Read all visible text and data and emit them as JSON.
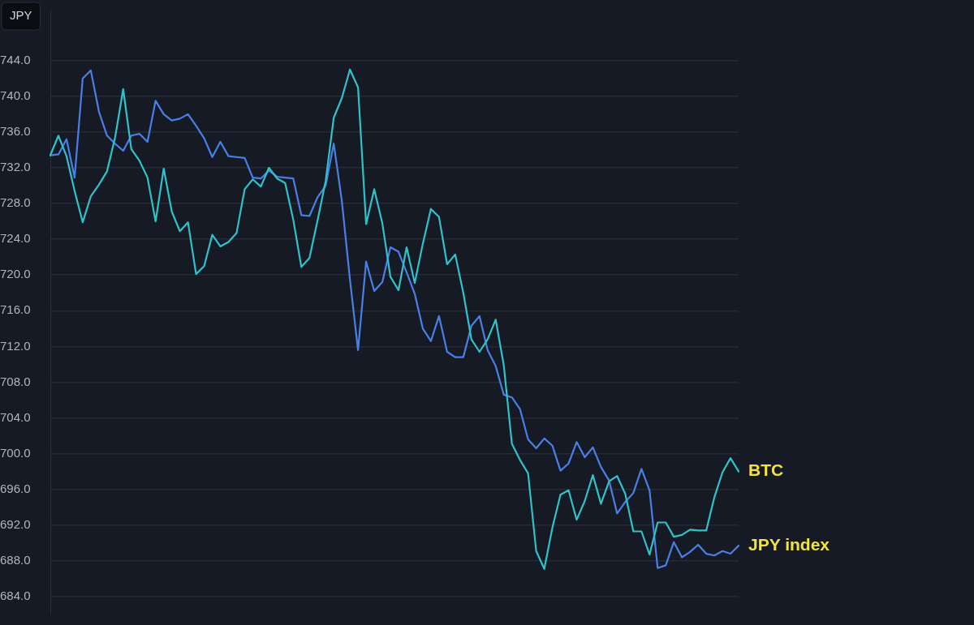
{
  "chart_data": {
    "type": "line",
    "ylabel": "JPY",
    "categories": [
      null,
      null,
      null,
      null,
      null,
      null,
      null,
      null,
      null,
      null,
      null,
      null,
      null,
      null,
      null,
      null,
      null,
      null,
      null,
      null,
      null,
      null,
      null,
      null,
      null,
      null,
      null,
      null,
      null,
      null,
      null,
      null,
      null,
      null,
      null,
      null,
      null,
      null,
      null,
      null,
      null,
      null,
      null,
      null,
      null,
      null,
      null,
      null,
      null,
      null,
      null,
      null,
      null,
      null,
      null,
      null,
      null,
      null,
      null,
      null,
      null,
      null,
      null,
      null,
      null,
      null,
      null,
      null,
      null,
      null,
      null,
      null,
      null,
      null,
      null,
      null,
      null,
      null,
      null,
      null,
      null,
      null,
      null,
      null,
      null,
      null
    ],
    "ylim": [
      682,
      749.6
    ],
    "yticks": [
      {
        "value": 684,
        "label": "684.0"
      },
      {
        "value": 688,
        "label": "688.0"
      },
      {
        "value": 692,
        "label": "692.0"
      },
      {
        "value": 696,
        "label": "696.0"
      },
      {
        "value": 700,
        "label": "700.0"
      },
      {
        "value": 704,
        "label": "704.0"
      },
      {
        "value": 708,
        "label": "708.0"
      },
      {
        "value": 712,
        "label": "712.0"
      },
      {
        "value": 716,
        "label": "716.0"
      },
      {
        "value": 720,
        "label": "720.0"
      },
      {
        "value": 724,
        "label": "724.0"
      },
      {
        "value": 728,
        "label": "728.0"
      },
      {
        "value": 732,
        "label": "732.0"
      },
      {
        "value": 736,
        "label": "736.0"
      },
      {
        "value": 740,
        "label": "740.0"
      },
      {
        "value": 744,
        "label": "744.0"
      }
    ],
    "grid": "y",
    "legend": false,
    "tick_labels": "y",
    "marker": "none",
    "line_style": "solid",
    "series": [
      {
        "name": "BTC",
        "color": "#2fc2c8",
        "values": [
          733.4,
          735.6,
          733.3,
          729.4,
          725.9,
          728.8,
          730.1,
          731.6,
          735.4,
          740.8,
          734.1,
          732.8,
          730.9,
          726,
          731.9,
          727.1,
          724.9,
          725.9,
          720.1,
          721,
          724.5,
          723.2,
          723.7,
          724.7,
          729.6,
          730.7,
          729.9,
          732,
          730.8,
          730.3,
          726.2,
          720.9,
          721.9,
          726.1,
          730.5,
          737.6,
          739.8,
          743,
          741,
          725.7,
          729.6,
          725.8,
          719.8,
          718.3,
          723.1,
          719.1,
          723.5,
          727.4,
          726.5,
          721.2,
          722.3,
          718,
          712.8,
          711.4,
          712.8,
          715,
          709.9,
          701.1,
          699.3,
          697.8,
          689.1,
          687.1,
          691.7,
          695.4,
          695.9,
          692.6,
          694.7,
          697.6,
          694.4,
          696.9,
          697.5,
          695.5,
          691.3,
          691.3,
          688.7,
          692.3,
          692.3,
          690.7,
          690.9,
          691.5,
          691.4,
          691.4,
          695.1,
          697.9,
          699.5,
          698
        ]
      },
      {
        "name": "JPY index",
        "color": "#4a7fe6",
        "values": [
          733.4,
          733.5,
          735.2,
          730.9,
          742,
          742.9,
          738.3,
          735.6,
          734.7,
          733.9,
          735.6,
          735.8,
          734.9,
          739.5,
          738,
          737.3,
          737.5,
          738,
          736.7,
          735.3,
          733.2,
          734.9,
          733.3,
          733.2,
          733.1,
          730.9,
          730.8,
          731.7,
          731,
          730.9,
          730.8,
          726.7,
          726.6,
          728.7,
          730,
          734.7,
          728.3,
          719.5,
          711.6,
          721.5,
          718.2,
          719.2,
          723.1,
          722.6,
          720.3,
          717.9,
          714,
          712.6,
          715.4,
          711.4,
          710.8,
          710.8,
          714.3,
          715.4,
          711.6,
          709.8,
          706.6,
          706.3,
          705,
          701.6,
          700.6,
          701.7,
          700.9,
          698.1,
          698.9,
          701.3,
          699.6,
          700.7,
          698.5,
          697,
          693.3,
          694.6,
          695.6,
          698.3,
          695.9,
          687.2,
          687.5,
          690.1,
          688.4,
          689,
          689.8,
          688.8,
          688.6,
          689.1,
          688.8,
          689.7
        ]
      }
    ]
  }
}
